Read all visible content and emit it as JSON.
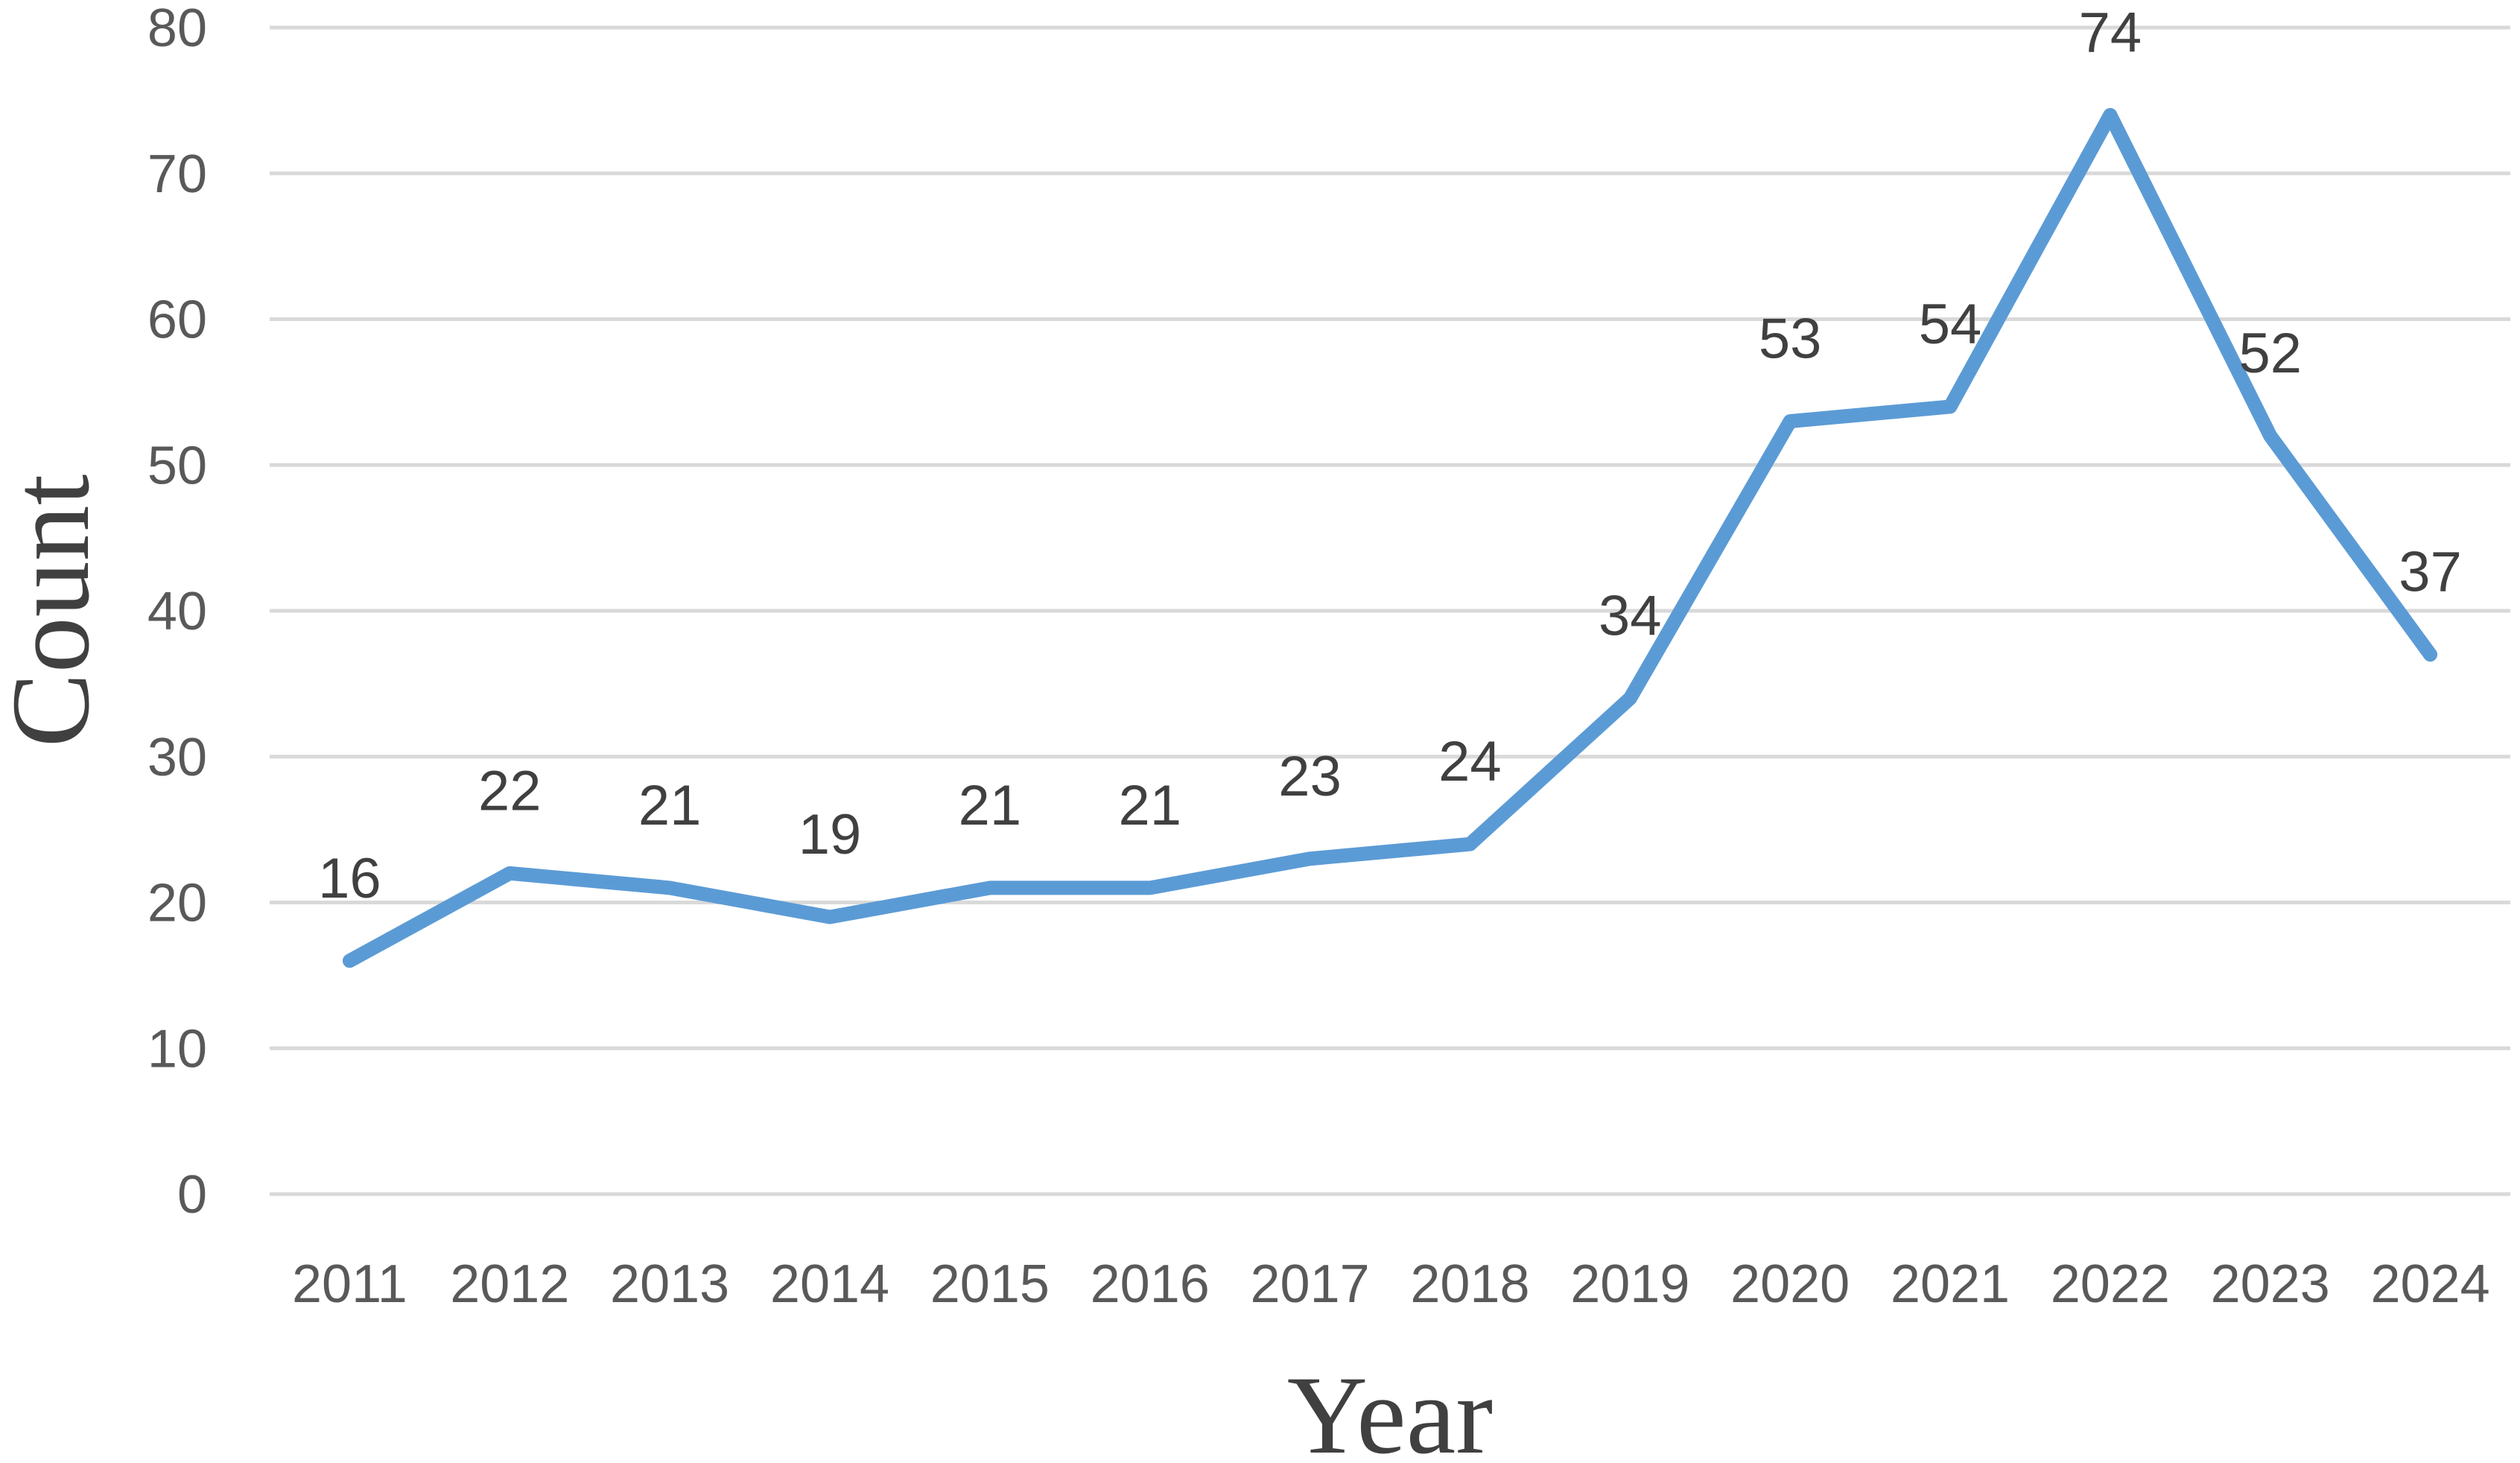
{
  "chart_data": {
    "type": "line",
    "title": "",
    "xlabel": "Year",
    "ylabel": "Count",
    "categories": [
      "2011",
      "2012",
      "2013",
      "2014",
      "2015",
      "2016",
      "2017",
      "2018",
      "2019",
      "2020",
      "2021",
      "2022",
      "2023",
      "2024"
    ],
    "series": [
      {
        "values": [
          16,
          22,
          21,
          19,
          21,
          21,
          23,
          24,
          34,
          53,
          54,
          74,
          52,
          37
        ],
        "color": "#5b9bd5"
      }
    ],
    "ylim": [
      0,
      80
    ],
    "yticks": [
      "0",
      "10",
      "20",
      "30",
      "40",
      "50",
      "60",
      "70",
      "80"
    ],
    "grid": true,
    "legend": "none",
    "data_labels": true
  }
}
